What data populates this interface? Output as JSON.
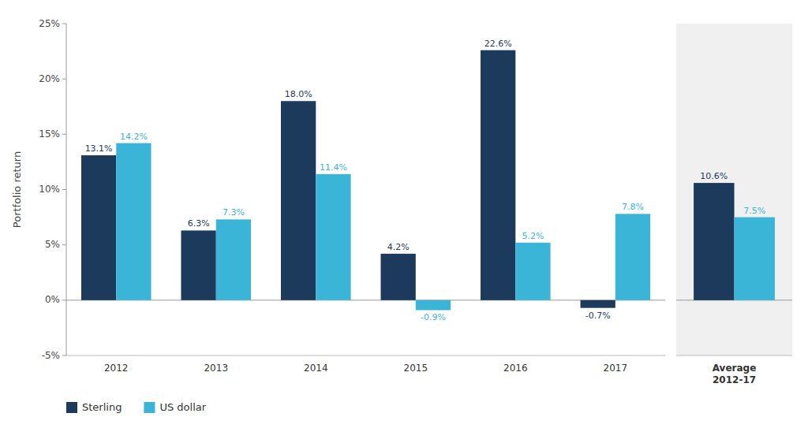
{
  "chart_data": [
    {
      "type": "bar",
      "ylabel": "Portfolio return",
      "categories": [
        "2012",
        "2013",
        "2014",
        "2015",
        "2016",
        "2017"
      ],
      "series": [
        {
          "name": "Sterling",
          "color": "#1b3a5c",
          "values": [
            13.1,
            6.3,
            18.0,
            4.2,
            22.6,
            -0.7
          ],
          "value_labels": [
            "13.1%",
            "6.3%",
            "18.0%",
            "4.2%",
            "22.6%",
            "-0.7%"
          ]
        },
        {
          "name": "US dollar",
          "color": "#3ab5d8",
          "values": [
            14.2,
            7.3,
            11.4,
            -0.9,
            5.2,
            7.8
          ],
          "value_labels": [
            "14.2%",
            "7.3%",
            "11.4%",
            "-0.9%",
            "5.2%",
            "7.8%"
          ]
        }
      ],
      "ylim": [
        -5,
        25
      ],
      "yticks": [
        {
          "value": -5,
          "label": "-5%"
        },
        {
          "value": 0,
          "label": "0%"
        },
        {
          "value": 5,
          "label": "5%"
        },
        {
          "value": 10,
          "label": "10%"
        },
        {
          "value": 15,
          "label": "15%"
        },
        {
          "value": 20,
          "label": "20%"
        },
        {
          "value": 25,
          "label": "25%"
        }
      ],
      "grid": false,
      "data_labels": true,
      "legend": "bottom"
    },
    {
      "type": "bar",
      "categories": [
        "Average\n2012-17"
      ],
      "series": [
        {
          "color": "#1b3a5c",
          "values": [
            10.6
          ],
          "value_labels": [
            "10.6%"
          ]
        },
        {
          "color": "#3ab5d8",
          "values": [
            7.5
          ],
          "value_labels": [
            "7.5%"
          ]
        }
      ],
      "ylim": [
        -5,
        25
      ],
      "grid": false,
      "data_labels": true,
      "tick_labels": "x"
    }
  ]
}
